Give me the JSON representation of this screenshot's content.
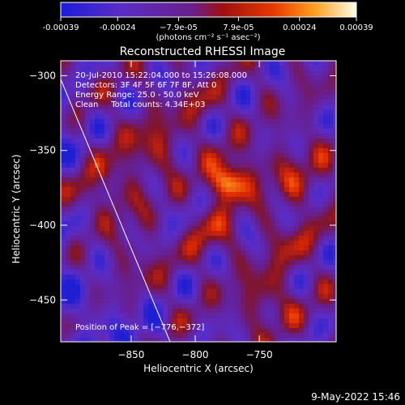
{
  "chart_data": {
    "type": "heatmap",
    "title": "Reconstructed RHESSI Image",
    "xlabel": "Heliocentric X (arcsec)",
    "ylabel": "Heliocentric Y (arcsec)",
    "xlim": [
      -905,
      -690
    ],
    "ylim": [
      -478,
      -290
    ],
    "xticks": [
      -850,
      -800,
      -750
    ],
    "xtick_labels": [
      "−850",
      "−800",
      "−750"
    ],
    "yticks": [
      -300,
      -350,
      -400,
      -450
    ],
    "ytick_labels": [
      "−300",
      "−350",
      "−400",
      "−450"
    ],
    "colorbar": {
      "min": -0.00039,
      "max": 0.00039,
      "ticks": [
        -0.00039,
        -0.00024,
        -7.9e-05,
        7.9e-05,
        0.00024,
        0.00039
      ],
      "tick_labels": [
        "-0.00039",
        "-0.00024",
        "−7.9e-05",
        "7.9e-05",
        "0.00024",
        "0.00039"
      ],
      "units": "(photons cm⁻² s⁻¹ asec⁻²)"
    },
    "annotations": [
      "20-Jul-2010 15:22:04.000 to 15:26:08.000",
      "Detectors: 3F 4F 5F 6F 7F 8F, Att 0",
      "Energy Range: 25.0 - 50.0 keV",
      "Clean     Total counts: 4.34E+03"
    ],
    "peak_label": "Position of Peak = [−776,−372]",
    "peak": [
      -776,
      -372
    ],
    "grid": false
  },
  "footer": {
    "date": "9-May-2022 15:46"
  }
}
